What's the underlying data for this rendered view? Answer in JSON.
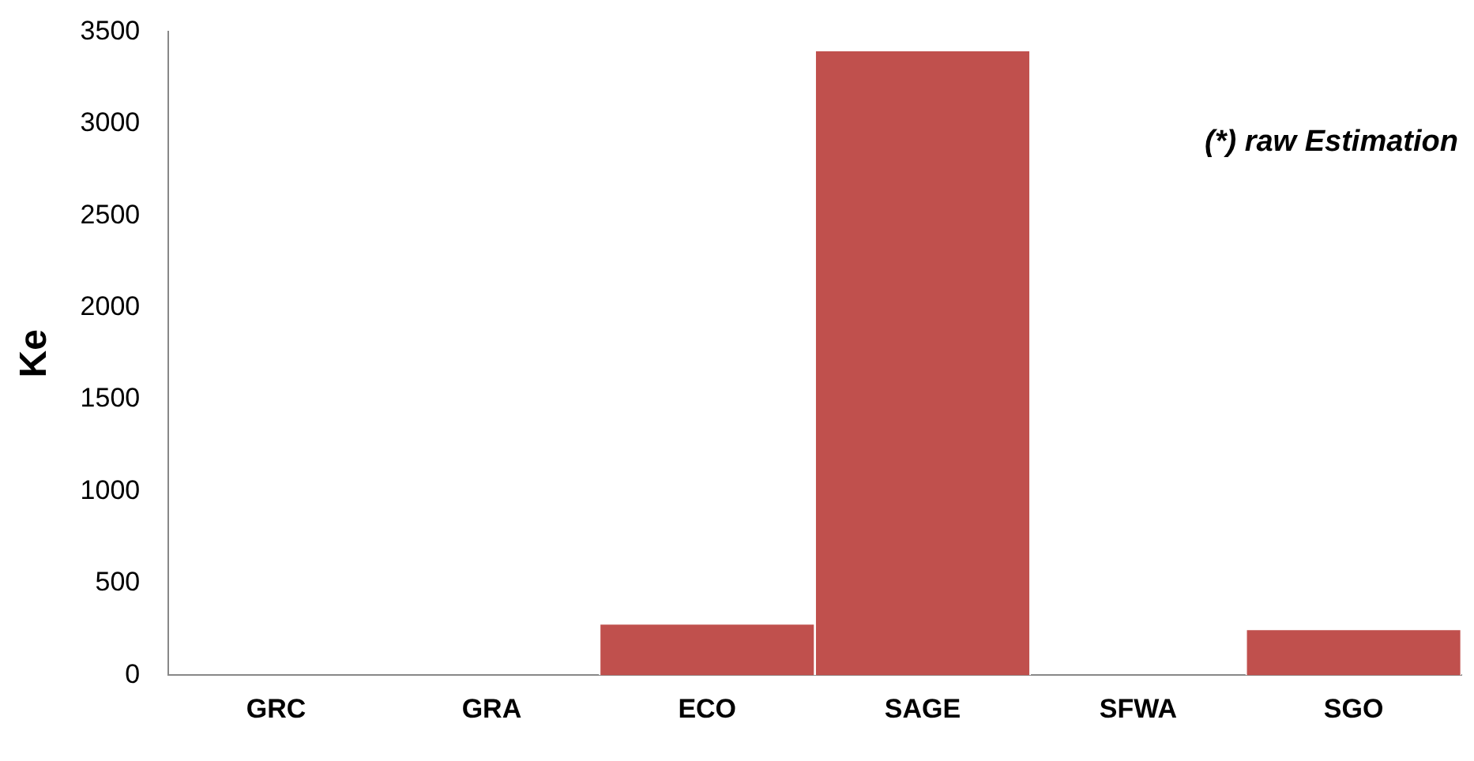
{
  "chart_data": {
    "type": "bar",
    "ylabel": "Ke",
    "annotations": [
      "(*) raw Estimation"
    ],
    "categories": [
      "GRC",
      "GRA",
      "ECO",
      "SAGE",
      "SFWA",
      "SGO"
    ],
    "values": [
      0,
      0,
      280,
      3400,
      0,
      250
    ],
    "color": "#c0504d",
    "ylim": [
      0,
      3500
    ],
    "yticks": [
      0,
      500,
      1000,
      1500,
      2000,
      2500,
      3000,
      3500
    ],
    "grid": false,
    "legend": false
  }
}
